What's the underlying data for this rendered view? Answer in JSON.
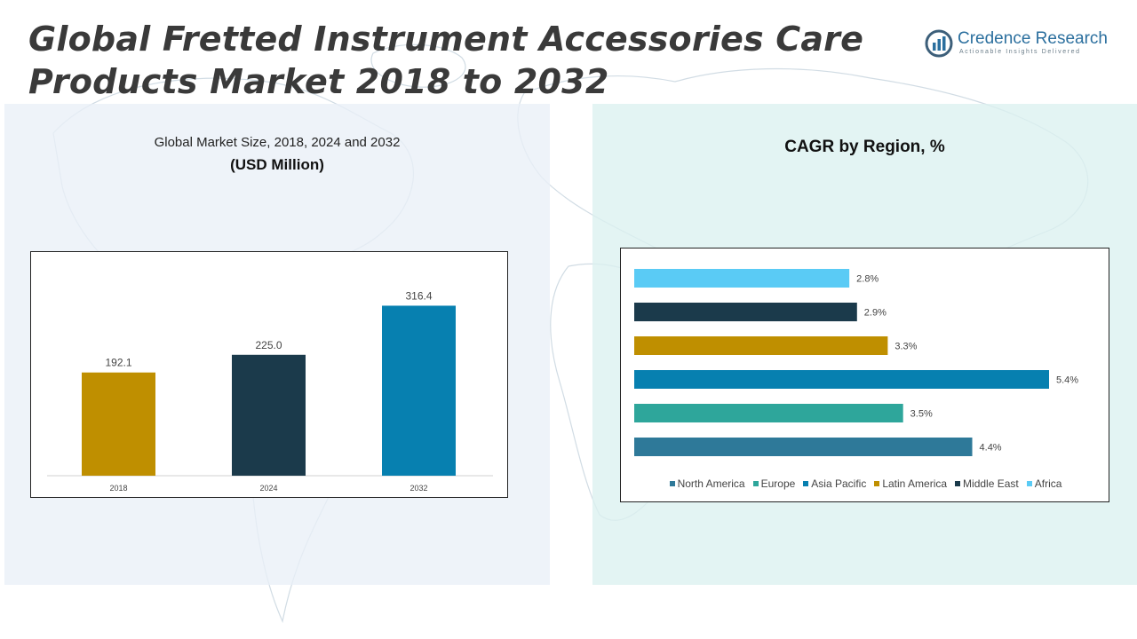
{
  "title": "Global Fretted Instrument Accessories Care Products Market 2018 to 2032",
  "logo": {
    "name": "Credence Research",
    "tagline": "Actionable Insights Delivered",
    "icon": "credence-logo-icon"
  },
  "left_panel": {
    "subtitle": "Global Market Size, 2018, 2024 and 2032",
    "unit": "(USD Million)"
  },
  "right_panel": {
    "title": "CAGR by Region, %"
  },
  "colors": {
    "gold": "#BF8F00",
    "navy": "#1B3A4B",
    "blue": "#0780B0",
    "teal": "#2EA69B",
    "steel": "#2E7999",
    "sky": "#5ACBF5"
  },
  "chart_data": [
    {
      "type": "bar",
      "categories": [
        "2018",
        "2024",
        "2032"
      ],
      "values": [
        192.1,
        225.0,
        316.4
      ],
      "value_labels": [
        "192.1",
        "225.0",
        "316.4"
      ],
      "colors": [
        "#BF8F00",
        "#1B3A4B",
        "#0780B0"
      ],
      "title": "Global Market Size, 2018, 2024 and 2032",
      "ylabel": "(USD Million)",
      "xlabel": "",
      "ylim": [
        0,
        370
      ],
      "grid": false
    },
    {
      "type": "bar",
      "orientation": "horizontal",
      "title": "CAGR by Region, %",
      "categories": [
        "Africa",
        "Middle East",
        "Latin America",
        "Asia Pacific",
        "Europe",
        "North America"
      ],
      "values": [
        2.8,
        2.9,
        3.3,
        5.4,
        3.5,
        4.4
      ],
      "value_labels": [
        "2.8%",
        "2.9%",
        "3.3%",
        "5.4%",
        "3.5%",
        "4.4%"
      ],
      "colors": [
        "#5ACBF5",
        "#1B3A4B",
        "#BF8F00",
        "#0780B0",
        "#2EA69B",
        "#2E7999"
      ],
      "xlim": [
        0,
        5.4
      ],
      "grid": false,
      "legend": {
        "placement": "bottom",
        "entries": [
          {
            "label": "North America",
            "color": "#2E7999"
          },
          {
            "label": "Europe",
            "color": "#2EA69B"
          },
          {
            "label": "Asia Pacific",
            "color": "#0780B0"
          },
          {
            "label": "Latin America",
            "color": "#BF8F00"
          },
          {
            "label": "Middle East",
            "color": "#1B3A4B"
          },
          {
            "label": "Africa",
            "color": "#5ACBF5"
          }
        ]
      }
    }
  ]
}
